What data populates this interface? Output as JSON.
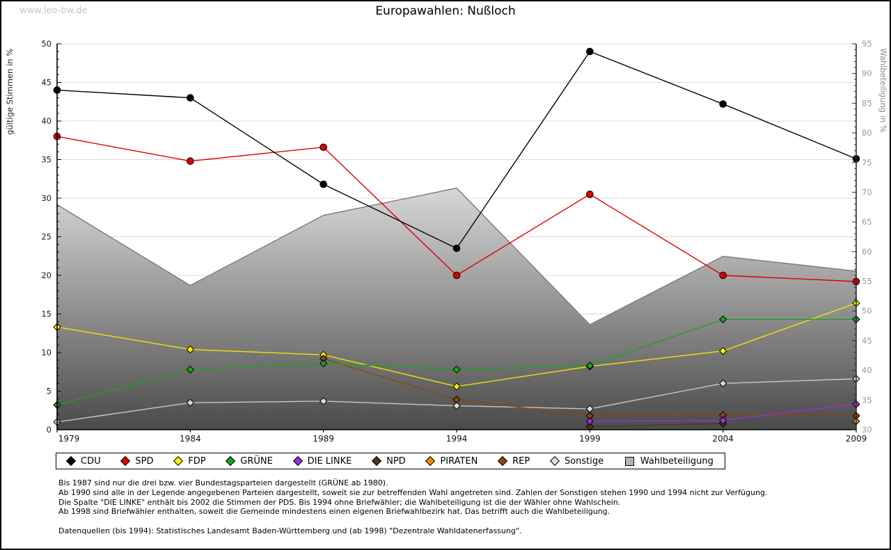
{
  "watermark": "www.leo-bw.de",
  "title": "Europawahlen: Nußloch",
  "chart_data": {
    "type": "line",
    "title": "Europawahlen: Nußloch",
    "x": [
      1979,
      1984,
      1989,
      1994,
      1999,
      2004,
      2009
    ],
    "axis_left": {
      "label": "gültige Stimmen in %",
      "min": 0,
      "max": 50,
      "step": 5
    },
    "axis_right": {
      "label": "Wahlbeteiligung in %",
      "min": 30,
      "max": 95,
      "step": 5
    },
    "grid": "horizontal",
    "legend_position": "bottom",
    "series": [
      {
        "name": "CDU",
        "color": "#000000",
        "marker_fill": "#000000",
        "marker": "circle",
        "axis": "left",
        "values": [
          44.0,
          43.0,
          31.8,
          23.5,
          49.0,
          42.2,
          35.1
        ]
      },
      {
        "name": "SPD",
        "color": "#dd0000",
        "marker_fill": "#dd0000",
        "marker": "circle",
        "axis": "left",
        "values": [
          38.0,
          34.8,
          36.6,
          20.0,
          30.5,
          20.0,
          19.2
        ]
      },
      {
        "name": "FDP",
        "color": "#f2e400",
        "marker_fill": "#ffee00",
        "marker": "diamond",
        "axis": "left",
        "values": [
          13.3,
          10.4,
          9.7,
          5.6,
          8.2,
          10.2,
          16.4
        ]
      },
      {
        "name": "GRÜNE",
        "color": "#1ea11e",
        "marker_fill": "#1ea11e",
        "marker": "diamond",
        "axis": "left",
        "values": [
          3.2,
          7.8,
          8.6,
          7.8,
          8.3,
          14.3,
          14.3
        ]
      },
      {
        "name": "DIE LINKE",
        "color": "#9933cc",
        "marker_fill": "#9933cc",
        "marker": "diamond",
        "axis": "left",
        "values": [
          null,
          null,
          null,
          null,
          1.1,
          1.2,
          3.3
        ]
      },
      {
        "name": "NPD",
        "color": "#4e3524",
        "marker_fill": "#4e3524",
        "marker": "diamond",
        "axis": "left",
        "values": [
          null,
          null,
          null,
          null,
          0.4,
          0.8,
          null
        ]
      },
      {
        "name": "PIRATEN",
        "color": "#f28c00",
        "marker_fill": "#f28c00",
        "marker": "diamond",
        "axis": "left",
        "values": [
          null,
          null,
          null,
          null,
          null,
          null,
          1.1
        ]
      },
      {
        "name": "REP",
        "color": "#8b4513",
        "marker_fill": "#8b4513",
        "marker": "diamond",
        "axis": "left",
        "values": [
          null,
          null,
          9.2,
          3.9,
          1.8,
          1.9,
          1.8
        ]
      },
      {
        "name": "Sonstige",
        "color": "#c8c8c8",
        "marker_fill": "#d9d9d9",
        "marker": "diamond",
        "axis": "left",
        "values": [
          1.0,
          3.5,
          3.7,
          3.1,
          2.7,
          6.0,
          6.6
        ]
      },
      {
        "name": "Wahlbeteiligung",
        "color": "#7f7f7f",
        "marker_fill": "#b3b3b3",
        "marker": "square",
        "axis": "right",
        "kind": "area",
        "values": [
          67.9,
          54.3,
          66.1,
          70.7,
          47.7,
          59.2,
          56.7
        ]
      }
    ],
    "draw_order": [
      "Sonstige",
      "FDP",
      "REP",
      "NPD",
      "PIRATEN",
      "DIE LINKE",
      "GRÜNE",
      "SPD",
      "CDU"
    ],
    "area_gradient": {
      "top": "#d9d9d9",
      "bottom": "#4a4a4a"
    },
    "colors": {
      "grid": "#dcdcdc",
      "spine": "#000000",
      "right_spine": "#2b2b2b",
      "left_tick_label": "#1a1a1a",
      "right_tick_label": "#9a9a9a",
      "left_axis_title": "#222222",
      "right_axis_title": "#8c8c8c",
      "year_label": "#111111"
    }
  },
  "footnotes": [
    "Bis 1987 sind nur die drei bzw. vier Bundestagsparteien dargestellt (GRÜNE ab 1980).",
    "Ab 1990 sind alle in der Legende angegebenen Parteien dargestellt, soweit sie zur betreffenden Wahl angetreten sind. Zahlen der Sonstigen stehen 1990 und 1994 nicht zur Verfügung.",
    "Die Spalte \"DIE LINKE\" enthält bis 2002 die Stimmen der PDS. Bis 1994 ohne Briefwähler; die Wahlbeteiligung ist die der Wähler ohne Wahlschein.",
    "Ab 1998 sind Briefwähler enthalten, soweit die Gemeinde mindestens einen eigenen Briefwahlbezirk hat. Das betrifft auch die Wahlbeteiligung.",
    "",
    "Datenquellen (bis 1994): Statistisches Landesamt Baden-Württemberg und (ab 1998) \"Dezentrale Wahldatenerfassung\"."
  ]
}
